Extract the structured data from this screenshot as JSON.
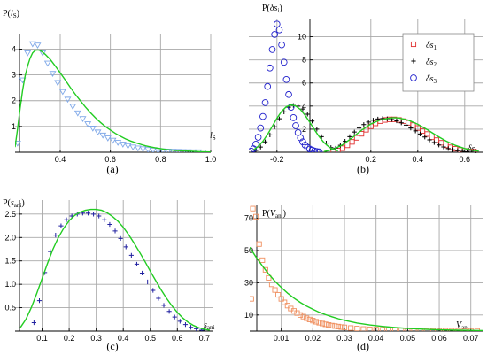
{
  "chart_data": [
    {
      "panel": "a",
      "type": "scatter",
      "caption": "(a)",
      "ylabel": "P(l_S)",
      "xlabel": "l_S",
      "xlim": [
        0.22,
        1.0
      ],
      "ylim": [
        0,
        4.6
      ],
      "xticks": [
        0.4,
        0.6,
        0.8,
        1.0
      ],
      "yticks": [
        1,
        2,
        3,
        4
      ],
      "xticklabels": [
        "0.4",
        "0.6",
        "0.8",
        "1.0"
      ],
      "yticklabels": [
        "1",
        "2",
        "3",
        "4"
      ],
      "grid": true,
      "series": [
        {
          "kind": "markers",
          "marker": "triangle-down",
          "color": "#7fa8e8",
          "x": [
            0.23,
            0.25,
            0.27,
            0.29,
            0.31,
            0.33,
            0.35,
            0.37,
            0.39,
            0.41,
            0.43,
            0.45,
            0.47,
            0.49,
            0.51,
            0.53,
            0.55,
            0.57,
            0.59,
            0.61,
            0.63,
            0.65,
            0.67,
            0.69,
            0.71,
            0.73,
            0.75,
            0.77,
            0.79,
            0.81,
            0.83,
            0.85,
            0.87,
            0.89,
            0.91,
            0.93,
            0.95,
            0.97
          ],
          "y": [
            0.35,
            2.8,
            3.85,
            4.2,
            4.15,
            3.85,
            3.45,
            3.05,
            2.7,
            2.35,
            2.05,
            1.78,
            1.52,
            1.3,
            1.1,
            0.93,
            0.78,
            0.66,
            0.55,
            0.46,
            0.38,
            0.31,
            0.25,
            0.2,
            0.16,
            0.13,
            0.1,
            0.08,
            0.06,
            0.05,
            0.04,
            0.03,
            0.025,
            0.02,
            0.015,
            0.01,
            0.008,
            0.005
          ]
        },
        {
          "kind": "line",
          "color": "#22cc22",
          "x": [
            0.22,
            0.23,
            0.24,
            0.25,
            0.26,
            0.27,
            0.28,
            0.29,
            0.3,
            0.31,
            0.32,
            0.33,
            0.34,
            0.36,
            0.38,
            0.4,
            0.42,
            0.44,
            0.46,
            0.48,
            0.5,
            0.52,
            0.54,
            0.56,
            0.58,
            0.6,
            0.62,
            0.64,
            0.66,
            0.68,
            0.7,
            0.72,
            0.74,
            0.76,
            0.78,
            0.8,
            0.82,
            0.84,
            0.86,
            0.88,
            0.9,
            0.92,
            0.94,
            0.96,
            0.98,
            1.0
          ],
          "y": [
            0.2,
            0.9,
            1.7,
            2.4,
            2.95,
            3.35,
            3.65,
            3.85,
            3.95,
            3.97,
            3.95,
            3.88,
            3.8,
            3.6,
            3.35,
            3.08,
            2.8,
            2.52,
            2.25,
            2.0,
            1.76,
            1.54,
            1.34,
            1.16,
            1.0,
            0.86,
            0.73,
            0.62,
            0.52,
            0.44,
            0.37,
            0.31,
            0.25,
            0.21,
            0.17,
            0.14,
            0.11,
            0.09,
            0.07,
            0.06,
            0.05,
            0.04,
            0.03,
            0.02,
            0.015,
            0.01
          ]
        }
      ]
    },
    {
      "panel": "b",
      "type": "scatter",
      "caption": "(b)",
      "ylabel": "P(δs_i)",
      "xlabel": "δs_i",
      "xlim": [
        -0.32,
        0.68
      ],
      "ylim": [
        0,
        11.5
      ],
      "xticks": [
        -0.2,
        0.2,
        0.4,
        0.6
      ],
      "yticks": [
        2,
        4,
        6,
        8,
        10
      ],
      "xticklabels": [
        "-0.2",
        "0.2",
        "0.4",
        "0.6"
      ],
      "yticklabels": [
        "2",
        "4",
        "6",
        "8",
        "10"
      ],
      "grid": true,
      "legend": {
        "position": "top-right",
        "entries": [
          {
            "label": "δs_1",
            "marker": "square",
            "color": "#e03030"
          },
          {
            "label": "δs_2",
            "marker": "plus",
            "color": "#000000"
          },
          {
            "label": "δs_3",
            "marker": "circle",
            "color": "#2222cc"
          }
        ]
      },
      "series": [
        {
          "name": "δs_1",
          "kind": "markers",
          "marker": "square",
          "color": "#e03030",
          "x": [
            0.04,
            0.06,
            0.08,
            0.1,
            0.12,
            0.14,
            0.16,
            0.18,
            0.2,
            0.22,
            0.24,
            0.26,
            0.28,
            0.3,
            0.32,
            0.34,
            0.36,
            0.38,
            0.4,
            0.42,
            0.44,
            0.46,
            0.48,
            0.5,
            0.52,
            0.54,
            0.56,
            0.58,
            0.6,
            0.62,
            0.64
          ],
          "y": [
            0.05,
            0.15,
            0.35,
            0.6,
            0.9,
            1.25,
            1.6,
            1.95,
            2.25,
            2.5,
            2.7,
            2.8,
            2.85,
            2.85,
            2.8,
            2.7,
            2.55,
            2.35,
            2.1,
            1.85,
            1.58,
            1.3,
            1.05,
            0.82,
            0.6,
            0.43,
            0.3,
            0.2,
            0.12,
            0.07,
            0.04
          ]
        },
        {
          "name": "δs_2",
          "kind": "markers",
          "marker": "plus",
          "color": "#000000",
          "x": [
            -0.29,
            -0.27,
            -0.25,
            -0.23,
            -0.21,
            -0.19,
            -0.17,
            -0.15,
            -0.13,
            -0.11,
            -0.09,
            -0.07,
            -0.05,
            -0.03,
            -0.01,
            0.01,
            0.03,
            0.05,
            0.07,
            0.09,
            0.11,
            0.13,
            0.15,
            0.17,
            0.19,
            0.21,
            0.23,
            0.25,
            0.27,
            0.29,
            0.31,
            0.33,
            0.35,
            0.37,
            0.39,
            0.41,
            0.43,
            0.45,
            0.47,
            0.49,
            0.51,
            0.53,
            0.55,
            0.57,
            0.59,
            0.61,
            0.63
          ],
          "y": [
            0.15,
            0.45,
            0.9,
            1.5,
            2.2,
            2.9,
            3.5,
            3.9,
            4.05,
            4.0,
            3.75,
            3.3,
            2.7,
            2.0,
            1.35,
            0.8,
            0.4,
            0.35,
            0.6,
            0.95,
            1.35,
            1.75,
            2.1,
            2.4,
            2.62,
            2.78,
            2.88,
            2.92,
            2.9,
            2.84,
            2.72,
            2.55,
            2.35,
            2.1,
            1.85,
            1.58,
            1.32,
            1.07,
            0.84,
            0.63,
            0.46,
            0.32,
            0.21,
            0.13,
            0.08,
            0.04,
            0.02
          ]
        },
        {
          "name": "δs_3",
          "kind": "markers",
          "marker": "circle",
          "color": "#2222cc",
          "x": [
            -0.31,
            -0.3,
            -0.29,
            -0.28,
            -0.27,
            -0.26,
            -0.25,
            -0.24,
            -0.23,
            -0.22,
            -0.21,
            -0.2,
            -0.19,
            -0.18,
            -0.17,
            -0.16,
            -0.15,
            -0.14,
            -0.13,
            -0.12,
            -0.11,
            -0.1,
            -0.09,
            -0.08,
            -0.07,
            -0.06,
            -0.05,
            -0.04,
            -0.03,
            -0.02
          ],
          "y": [
            0.1,
            0.3,
            0.7,
            1.3,
            2.1,
            3.1,
            4.3,
            5.7,
            7.3,
            8.9,
            10.2,
            11.1,
            10.6,
            9.3,
            7.8,
            6.3,
            5.0,
            3.9,
            3.0,
            2.3,
            1.7,
            1.25,
            0.9,
            0.62,
            0.42,
            0.28,
            0.18,
            0.11,
            0.06,
            0.03
          ]
        },
        {
          "kind": "line",
          "color": "#22cc22",
          "x": [
            -0.3,
            -0.28,
            -0.26,
            -0.24,
            -0.22,
            -0.2,
            -0.18,
            -0.16,
            -0.14,
            -0.12,
            -0.1,
            -0.08,
            -0.06,
            -0.04,
            -0.02,
            0.0,
            0.02,
            0.04,
            0.06
          ],
          "y": [
            0.2,
            0.5,
            0.95,
            1.55,
            2.25,
            2.95,
            3.55,
            3.95,
            4.1,
            4.0,
            3.7,
            3.2,
            2.6,
            1.95,
            1.35,
            0.85,
            0.48,
            0.25,
            0.12
          ]
        },
        {
          "kind": "line",
          "color": "#22cc22",
          "x": [
            0.0,
            0.04,
            0.08,
            0.12,
            0.16,
            0.2,
            0.24,
            0.28,
            0.3,
            0.32,
            0.36,
            0.4,
            0.44,
            0.48,
            0.52,
            0.56,
            0.6,
            0.64,
            0.66
          ],
          "y": [
            0.05,
            0.25,
            0.65,
            1.25,
            1.9,
            2.45,
            2.8,
            2.97,
            3.0,
            2.97,
            2.78,
            2.42,
            1.96,
            1.45,
            0.98,
            0.6,
            0.32,
            0.15,
            0.1
          ]
        }
      ]
    },
    {
      "panel": "c",
      "type": "scatter",
      "caption": "(c)",
      "ylabel": "P(s_ani)",
      "xlabel": "s_ani",
      "xlim": [
        0.0,
        0.73
      ],
      "ylim": [
        0,
        2.8
      ],
      "xticks": [
        0.1,
        0.2,
        0.3,
        0.4,
        0.5,
        0.6,
        0.7
      ],
      "yticks": [
        0.5,
        1.0,
        1.5,
        2.0,
        2.5
      ],
      "xticklabels": [
        "0.1",
        "0.2",
        "0.3",
        "0.4",
        "0.5",
        "0.6",
        "0.7"
      ],
      "yticklabels": [
        "0.5",
        "1.0",
        "1.5",
        "2.0",
        "2.5"
      ],
      "grid": true,
      "series": [
        {
          "kind": "markers",
          "marker": "plus",
          "color": "#2020a0",
          "x": [
            0.07,
            0.09,
            0.11,
            0.13,
            0.15,
            0.17,
            0.19,
            0.21,
            0.23,
            0.25,
            0.27,
            0.29,
            0.31,
            0.33,
            0.35,
            0.37,
            0.39,
            0.41,
            0.43,
            0.45,
            0.47,
            0.49,
            0.51,
            0.53,
            0.55,
            0.57,
            0.59,
            0.61,
            0.63,
            0.65,
            0.67,
            0.69
          ],
          "y": [
            0.18,
            0.65,
            1.25,
            1.7,
            2.05,
            2.25,
            2.38,
            2.46,
            2.5,
            2.52,
            2.52,
            2.5,
            2.46,
            2.38,
            2.28,
            2.14,
            1.98,
            1.8,
            1.62,
            1.43,
            1.24,
            1.05,
            0.87,
            0.7,
            0.55,
            0.42,
            0.3,
            0.21,
            0.14,
            0.08,
            0.05,
            0.02
          ]
        },
        {
          "kind": "line",
          "color": "#22cc22",
          "x": [
            0.02,
            0.04,
            0.06,
            0.08,
            0.1,
            0.12,
            0.14,
            0.16,
            0.18,
            0.2,
            0.22,
            0.24,
            0.26,
            0.28,
            0.3,
            0.32,
            0.34,
            0.36,
            0.38,
            0.4,
            0.42,
            0.44,
            0.46,
            0.48,
            0.5,
            0.52,
            0.54,
            0.56,
            0.58,
            0.6,
            0.62,
            0.64,
            0.66,
            0.68,
            0.7,
            0.72
          ],
          "y": [
            0.08,
            0.25,
            0.5,
            0.8,
            1.12,
            1.45,
            1.75,
            2.0,
            2.2,
            2.36,
            2.47,
            2.54,
            2.58,
            2.6,
            2.6,
            2.58,
            2.53,
            2.45,
            2.35,
            2.22,
            2.06,
            1.88,
            1.69,
            1.49,
            1.28,
            1.08,
            0.88,
            0.7,
            0.54,
            0.4,
            0.28,
            0.19,
            0.12,
            0.07,
            0.04,
            0.02
          ]
        }
      ]
    },
    {
      "panel": "d",
      "type": "scatter",
      "caption": "(d)",
      "ylabel": "P(V_ani)",
      "xlabel": "V_ani",
      "xlim": [
        0.0,
        0.074
      ],
      "ylim": [
        0,
        78
      ],
      "xticks": [
        0.01,
        0.02,
        0.03,
        0.04,
        0.05,
        0.06,
        0.07
      ],
      "yticks": [
        10,
        30,
        50,
        70
      ],
      "xticklabels": [
        "0.01",
        "0.02",
        "0.03",
        "0.04",
        "0.05",
        "0.06",
        "0.07"
      ],
      "yticklabels": [
        "10",
        "30",
        "50",
        "70"
      ],
      "grid": true,
      "series": [
        {
          "kind": "markers",
          "marker": "square",
          "color": "#f09060",
          "x": [
            0.0005,
            0.001,
            0.002,
            0.003,
            0.004,
            0.005,
            0.006,
            0.007,
            0.008,
            0.009,
            0.01,
            0.011,
            0.012,
            0.013,
            0.014,
            0.015,
            0.016,
            0.017,
            0.018,
            0.019,
            0.02,
            0.021,
            0.022,
            0.023,
            0.024,
            0.025,
            0.026,
            0.027,
            0.028,
            0.029,
            0.03,
            0.032,
            0.034,
            0.036,
            0.038,
            0.04,
            0.042,
            0.044,
            0.046,
            0.048,
            0.05,
            0.052,
            0.054,
            0.056,
            0.058,
            0.06,
            0.062,
            0.064,
            0.066,
            0.068,
            0.07,
            0.072
          ],
          "y": [
            20,
            76,
            71,
            54,
            44,
            38,
            33,
            29,
            25.5,
            22.5,
            20,
            17.8,
            15.8,
            14,
            12.5,
            11.2,
            10,
            9,
            8,
            7.2,
            6.5,
            5.8,
            5.2,
            4.7,
            4.2,
            3.8,
            3.4,
            3.1,
            2.8,
            2.5,
            2.3,
            1.9,
            1.6,
            1.3,
            1.1,
            0.95,
            0.8,
            0.7,
            0.6,
            0.5,
            0.42,
            0.36,
            0.3,
            0.26,
            0.22,
            0.19,
            0.16,
            0.14,
            0.12,
            0.1,
            0.09,
            0.08
          ]
        },
        {
          "kind": "line",
          "color": "#22cc22",
          "x": [
            0.0,
            0.002,
            0.004,
            0.006,
            0.008,
            0.01,
            0.012,
            0.014,
            0.016,
            0.018,
            0.02,
            0.022,
            0.024,
            0.026,
            0.028,
            0.03,
            0.034,
            0.038,
            0.042,
            0.046,
            0.05,
            0.054,
            0.058,
            0.062,
            0.066,
            0.07,
            0.074
          ],
          "y": [
            52,
            46,
            40.5,
            35.5,
            31,
            27,
            23.5,
            20.5,
            17.8,
            15.5,
            13.5,
            11.7,
            10.2,
            8.9,
            7.7,
            6.7,
            5.0,
            3.8,
            2.9,
            2.2,
            1.65,
            1.25,
            0.95,
            0.72,
            0.55,
            0.42,
            0.32
          ]
        }
      ]
    }
  ]
}
